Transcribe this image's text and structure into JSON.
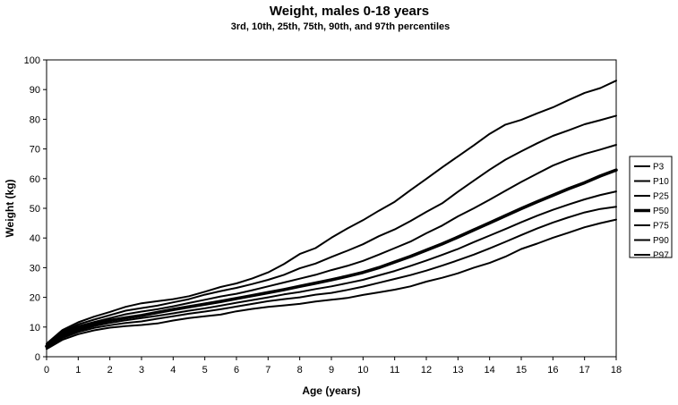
{
  "chart_data": {
    "type": "line",
    "title": "Weight, males 0-18 years",
    "subtitle": "3rd, 10th, 25th, 75th, 90th, and 97th percentiles",
    "xlabel": "Age (years)",
    "ylabel": "Weight (kg)",
    "xlim": [
      0,
      18
    ],
    "ylim": [
      0,
      100
    ],
    "xticks": [
      "0",
      "1",
      "2",
      "3",
      "4",
      "5",
      "6",
      "7",
      "8",
      "9",
      "10",
      "11",
      "12",
      "13",
      "14",
      "15",
      "16",
      "17",
      "18"
    ],
    "yticks": [
      "0",
      "10",
      "20",
      "30",
      "40",
      "50",
      "60",
      "70",
      "80",
      "90",
      "100"
    ],
    "grid": false,
    "legend_position": "right",
    "x": [
      0,
      0.5,
      1,
      1.5,
      2,
      2.5,
      3,
      3.5,
      4,
      4.5,
      5,
      5.5,
      6,
      6.5,
      7,
      7.5,
      8,
      8.5,
      9,
      9.5,
      10,
      10.5,
      11,
      11.5,
      12,
      12.5,
      13,
      13.5,
      14,
      14.5,
      15,
      15.5,
      16,
      16.5,
      17,
      17.5,
      18
    ],
    "series": [
      {
        "name": "P3",
        "width": 2,
        "values": [
          2.6,
          5.7,
          7.6,
          8.9,
          9.8,
          10.3,
          10.7,
          11.2,
          12.2,
          13.0,
          13.6,
          14.2,
          15.3,
          16.1,
          16.8,
          17.3,
          17.8,
          18.6,
          19.2,
          19.8,
          20.8,
          21.7,
          22.6,
          23.7,
          25.3,
          26.6,
          28.1,
          30.0,
          31.6,
          33.7,
          36.3,
          38.1,
          40.1,
          41.8,
          43.6,
          45.0,
          46.2
        ]
      },
      {
        "name": "P10",
        "width": 2,
        "values": [
          2.9,
          6.3,
          8.3,
          9.7,
          10.6,
          11.4,
          11.9,
          12.8,
          13.6,
          14.5,
          15.2,
          16.0,
          16.9,
          17.8,
          18.7,
          19.4,
          20.0,
          20.9,
          21.5,
          22.5,
          23.6,
          24.9,
          26.2,
          27.5,
          29.0,
          30.7,
          32.5,
          34.4,
          36.5,
          38.7,
          41.0,
          43.2,
          45.2,
          47.0,
          48.6,
          49.8,
          50.5
        ]
      },
      {
        "name": "P25",
        "width": 2,
        "values": [
          3.2,
          6.8,
          8.8,
          10.3,
          11.4,
          12.3,
          13.0,
          13.8,
          14.6,
          15.5,
          16.3,
          17.2,
          18.2,
          19.1,
          20.0,
          21.0,
          21.8,
          22.8,
          23.7,
          24.8,
          25.9,
          27.4,
          28.9,
          30.6,
          32.4,
          34.3,
          36.3,
          38.6,
          40.8,
          43.0,
          45.3,
          47.5,
          49.5,
          51.3,
          53.0,
          54.5,
          55.7
        ]
      },
      {
        "name": "P50",
        "width": 3.6,
        "values": [
          3.5,
          7.3,
          9.5,
          11.0,
          12.2,
          13.1,
          13.9,
          14.9,
          15.9,
          16.8,
          17.7,
          18.6,
          19.6,
          20.6,
          21.6,
          22.6,
          23.7,
          24.8,
          25.9,
          27.1,
          28.4,
          30.0,
          31.9,
          33.8,
          35.9,
          38.0,
          40.3,
          42.7,
          45.1,
          47.5,
          49.9,
          52.2,
          54.4,
          56.6,
          58.6,
          60.9,
          62.9
        ]
      },
      {
        "name": "P75",
        "width": 2,
        "values": [
          3.8,
          8.0,
          10.3,
          11.7,
          13.0,
          14.3,
          15.2,
          16.0,
          17.0,
          18.1,
          19.2,
          20.3,
          21.2,
          22.4,
          23.7,
          25.0,
          26.3,
          27.6,
          29.2,
          30.6,
          32.3,
          34.4,
          36.6,
          38.8,
          41.6,
          44.2,
          47.3,
          50.0,
          52.9,
          55.9,
          58.9,
          61.7,
          64.4,
          66.5,
          68.3,
          69.8,
          71.4
        ]
      },
      {
        "name": "P90",
        "width": 2,
        "values": [
          4.1,
          8.5,
          10.9,
          12.5,
          14.0,
          15.5,
          16.4,
          17.2,
          18.3,
          19.4,
          20.9,
          22.1,
          23.2,
          24.5,
          25.9,
          27.6,
          29.8,
          31.4,
          33.6,
          35.7,
          37.9,
          40.6,
          42.9,
          45.7,
          48.8,
          51.7,
          55.6,
          59.3,
          63.0,
          66.4,
          69.2,
          71.9,
          74.4,
          76.3,
          78.3,
          79.7,
          81.2
        ]
      },
      {
        "name": "P97",
        "width": 2,
        "values": [
          4.4,
          9.0,
          11.6,
          13.5,
          15.1,
          16.8,
          18.0,
          18.7,
          19.4,
          20.4,
          21.9,
          23.5,
          24.7,
          26.4,
          28.4,
          31.2,
          34.6,
          36.6,
          40.1,
          43.2,
          46.0,
          49.2,
          52.2,
          56.1,
          59.9,
          63.8,
          67.5,
          71.2,
          75.1,
          78.2,
          79.8,
          82.0,
          84.0,
          86.5,
          88.9,
          90.5,
          93.0
        ]
      }
    ]
  }
}
